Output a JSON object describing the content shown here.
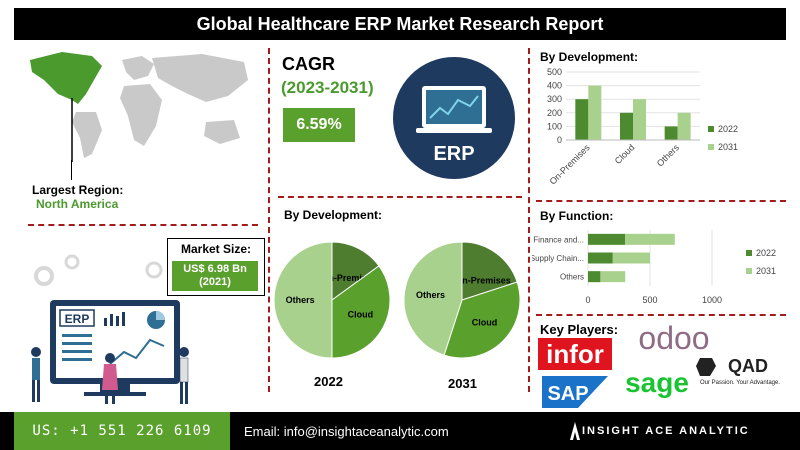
{
  "title": "Global Healthcare ERP Market Research Report",
  "region": {
    "label": "Largest Region:",
    "value": "North America"
  },
  "cagr": {
    "label": "CAGR",
    "period": "(2023-2031)",
    "value": "6.59%"
  },
  "erp_badge": "ERP",
  "illustration_label": "ERP",
  "market_size": {
    "label": "Market Size:",
    "value": "US$ 6.98 Bn",
    "year": "(2021)"
  },
  "colors": {
    "dark_green": "#4e8a2f",
    "light_green": "#a9d18e",
    "mid_green": "#5aa02c",
    "divider": "#a31c1c",
    "navy": "#1e3a5f"
  },
  "footer": {
    "phone": "US: +1 551 226 6109",
    "email": "Email: info@insightaceanalytic.com",
    "brand": "INSIGHT ACE ANALYTIC"
  },
  "key_players": {
    "label": "Key Players:",
    "logos": [
      "odoo",
      "infor",
      "QAD",
      "SAP",
      "sage"
    ],
    "qad_tagline": "Our Passion. Your Advantage."
  },
  "chart_data": [
    {
      "type": "bar",
      "title": "By Development:",
      "categories": [
        "On-Premises",
        "Cloud",
        "Others"
      ],
      "series": [
        {
          "name": "2022",
          "values": [
            300,
            200,
            100
          ]
        },
        {
          "name": "2031",
          "values": [
            400,
            300,
            200
          ]
        }
      ],
      "ylim": [
        0,
        500
      ],
      "yticks": [
        0,
        100,
        200,
        300,
        400,
        500
      ],
      "legend": "right"
    },
    {
      "type": "bar",
      "orientation": "horizontal",
      "title": "By Function:",
      "categories": [
        "Finance and...",
        "Supply Chain...",
        "Others"
      ],
      "series": [
        {
          "name": "2022",
          "values": [
            300,
            200,
            100
          ]
        },
        {
          "name": "2031",
          "values": [
            400,
            300,
            200
          ]
        }
      ],
      "xlim": [
        0,
        1000
      ],
      "xticks": [
        0,
        500,
        1000
      ],
      "stacked": true,
      "legend": "right"
    },
    {
      "type": "pie",
      "title": "By Development:",
      "caption": "2022",
      "slices": [
        {
          "label": "On-Premises",
          "value": 15
        },
        {
          "label": "Cloud",
          "value": 35
        },
        {
          "label": "Others",
          "value": 50
        }
      ]
    },
    {
      "type": "pie",
      "caption": "2031",
      "slices": [
        {
          "label": "On-Premises",
          "value": 20
        },
        {
          "label": "Cloud",
          "value": 35
        },
        {
          "label": "Others",
          "value": 45
        }
      ]
    }
  ]
}
